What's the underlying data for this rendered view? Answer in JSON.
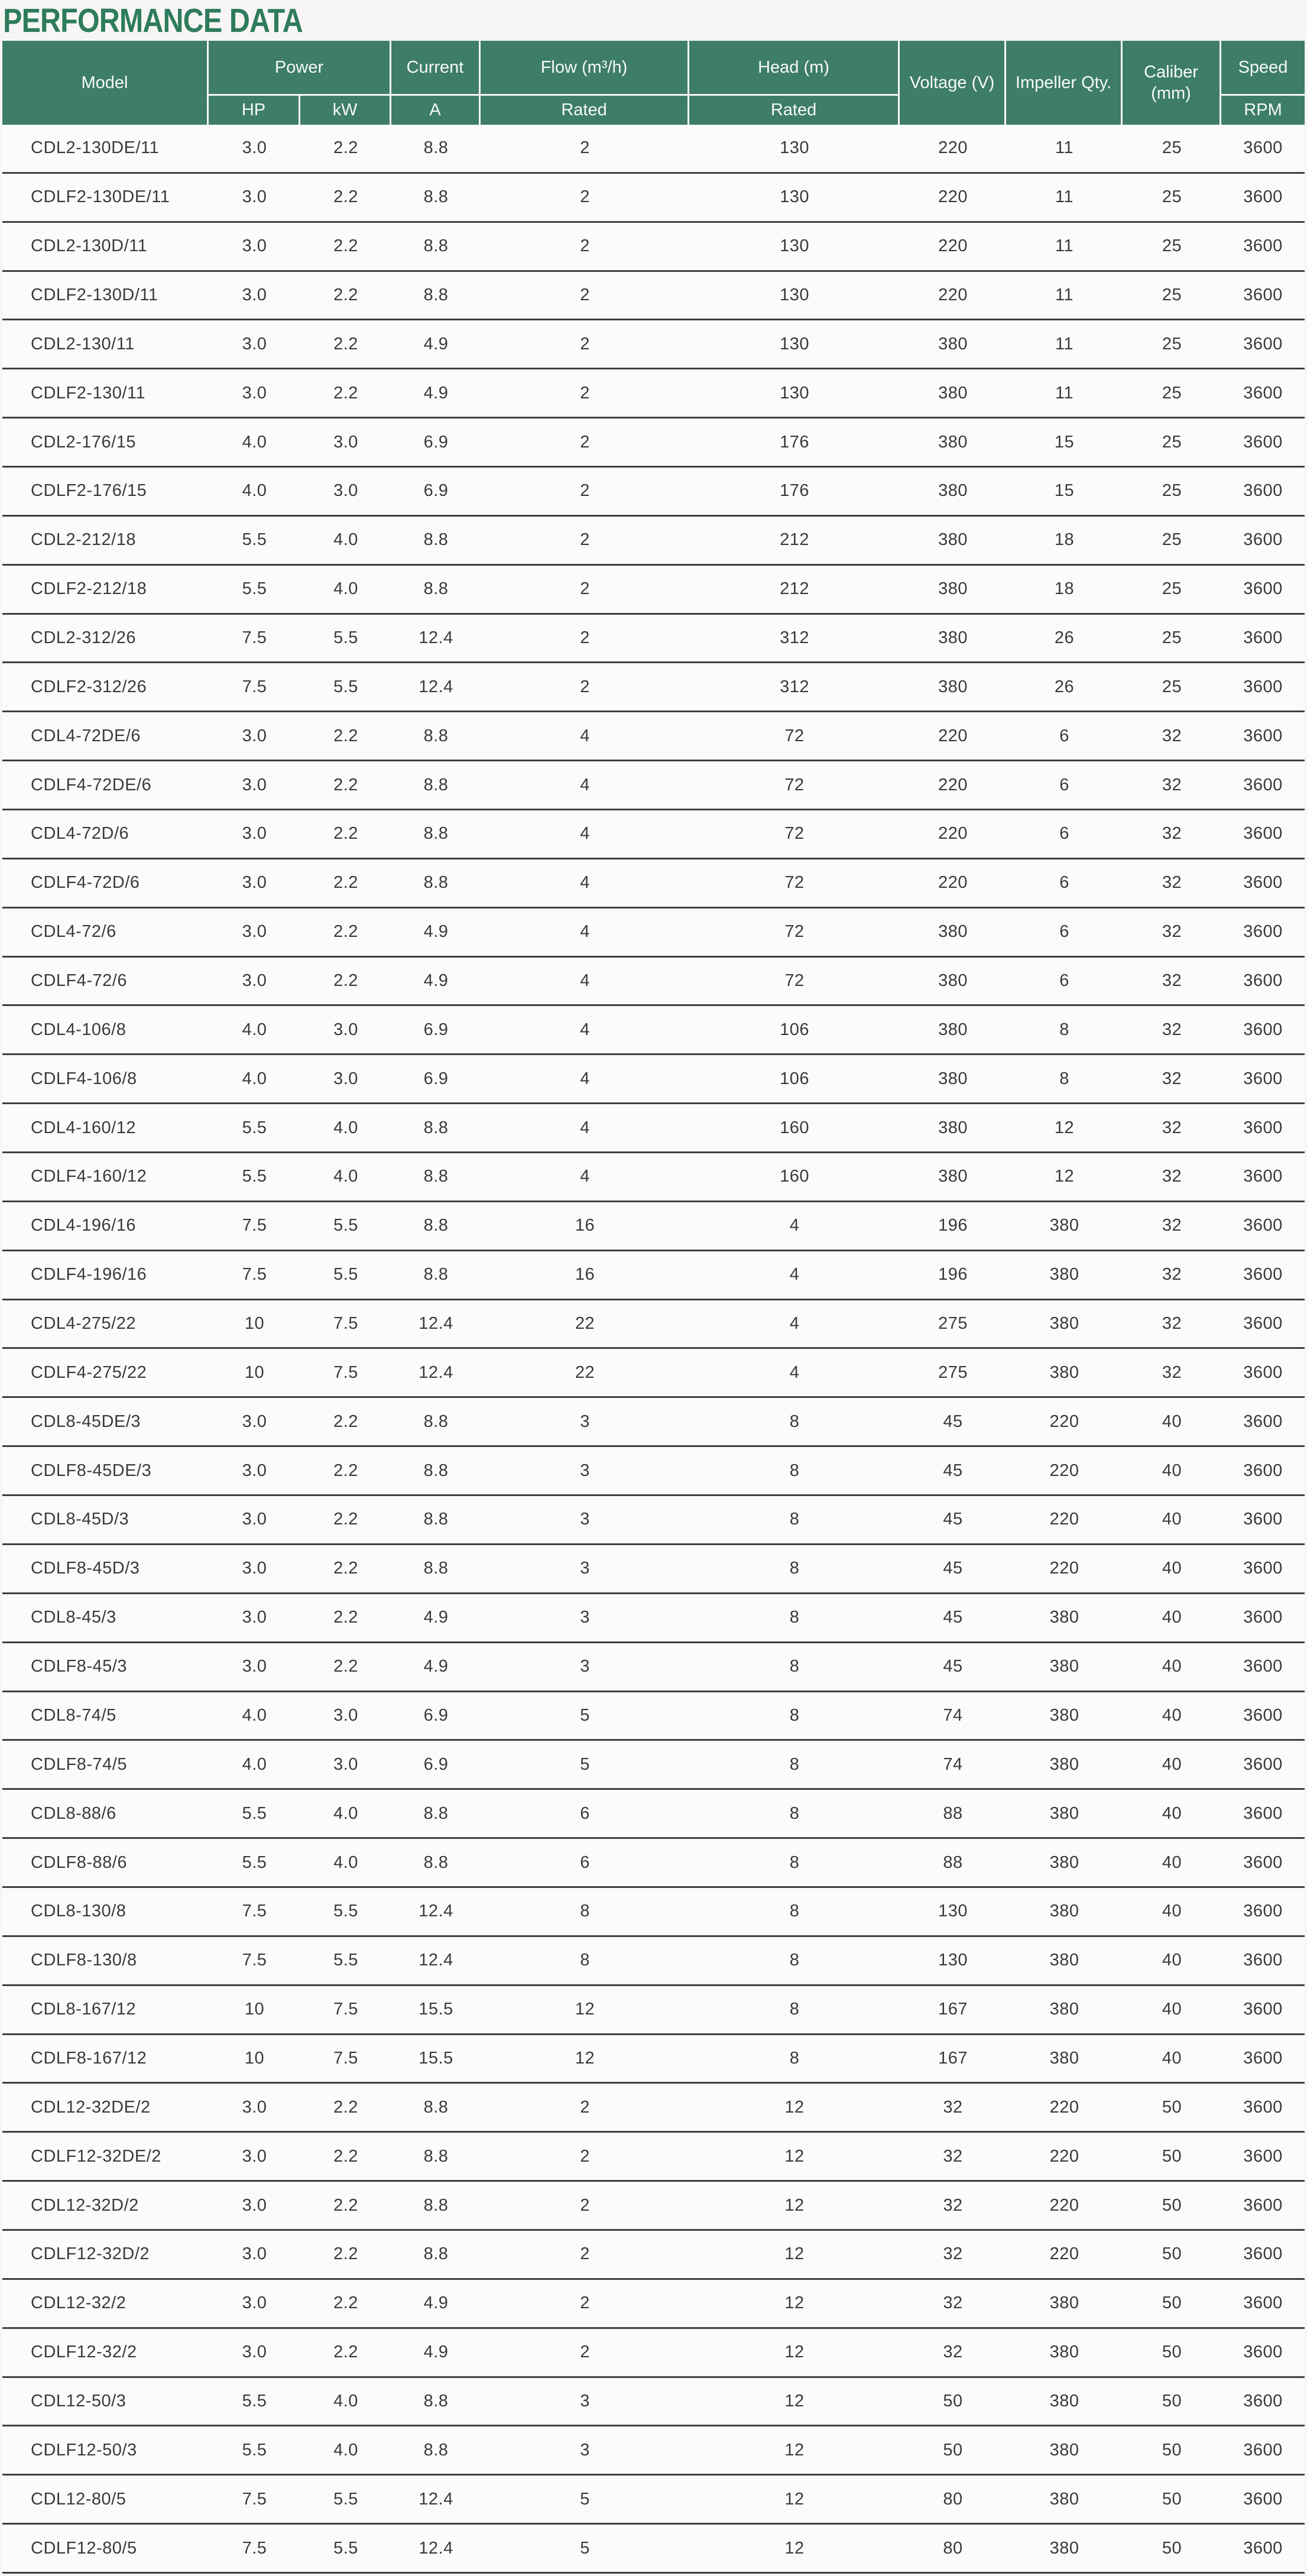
{
  "page": {
    "title": "PERFORMANCE DATA"
  },
  "colors": {
    "title_green": "#2e7b5e",
    "header_green": "#3e7d68",
    "header_text": "#f6faf8",
    "row_background": "#fbfbfa",
    "row_separator": "#3f3f3f",
    "body_text": "#3a3a3a",
    "page_background": "#f7f6f4"
  },
  "table": {
    "header": {
      "model": "Model",
      "power": "Power",
      "hp": "HP",
      "kw": "kW",
      "current": "Current",
      "current_sub": "A",
      "flow": "Flow (m³/h)",
      "flow_sub": "Rated",
      "head": "Head (m)",
      "head_sub": "Rated",
      "voltage": "Voltage (V)",
      "impeller": "Impeller Qty.",
      "caliber": "Caliber (mm)",
      "speed": "Speed",
      "speed_sub": "RPM"
    },
    "columns": [
      "model",
      "hp",
      "kw",
      "a",
      "flow",
      "head",
      "voltage",
      "impeller",
      "caliber",
      "speed"
    ],
    "rows": [
      [
        "CDL2-130DE/11",
        "3.0",
        "2.2",
        "8.8",
        "2",
        "130",
        "220",
        "11",
        "25",
        "3600"
      ],
      [
        "CDLF2-130DE/11",
        "3.0",
        "2.2",
        "8.8",
        "2",
        "130",
        "220",
        "11",
        "25",
        "3600"
      ],
      [
        "CDL2-130D/11",
        "3.0",
        "2.2",
        "8.8",
        "2",
        "130",
        "220",
        "11",
        "25",
        "3600"
      ],
      [
        "CDLF2-130D/11",
        "3.0",
        "2.2",
        "8.8",
        "2",
        "130",
        "220",
        "11",
        "25",
        "3600"
      ],
      [
        "CDL2-130/11",
        "3.0",
        "2.2",
        "4.9",
        "2",
        "130",
        "380",
        "11",
        "25",
        "3600"
      ],
      [
        "CDLF2-130/11",
        "3.0",
        "2.2",
        "4.9",
        "2",
        "130",
        "380",
        "11",
        "25",
        "3600"
      ],
      [
        "CDL2-176/15",
        "4.0",
        "3.0",
        "6.9",
        "2",
        "176",
        "380",
        "15",
        "25",
        "3600"
      ],
      [
        "CDLF2-176/15",
        "4.0",
        "3.0",
        "6.9",
        "2",
        "176",
        "380",
        "15",
        "25",
        "3600"
      ],
      [
        "CDL2-212/18",
        "5.5",
        "4.0",
        "8.8",
        "2",
        "212",
        "380",
        "18",
        "25",
        "3600"
      ],
      [
        "CDLF2-212/18",
        "5.5",
        "4.0",
        "8.8",
        "2",
        "212",
        "380",
        "18",
        "25",
        "3600"
      ],
      [
        "CDL2-312/26",
        "7.5",
        "5.5",
        "12.4",
        "2",
        "312",
        "380",
        "26",
        "25",
        "3600"
      ],
      [
        "CDLF2-312/26",
        "7.5",
        "5.5",
        "12.4",
        "2",
        "312",
        "380",
        "26",
        "25",
        "3600"
      ],
      [
        "CDL4-72DE/6",
        "3.0",
        "2.2",
        "8.8",
        "4",
        "72",
        "220",
        "6",
        "32",
        "3600"
      ],
      [
        "CDLF4-72DE/6",
        "3.0",
        "2.2",
        "8.8",
        "4",
        "72",
        "220",
        "6",
        "32",
        "3600"
      ],
      [
        "CDL4-72D/6",
        "3.0",
        "2.2",
        "8.8",
        "4",
        "72",
        "220",
        "6",
        "32",
        "3600"
      ],
      [
        "CDLF4-72D/6",
        "3.0",
        "2.2",
        "8.8",
        "4",
        "72",
        "220",
        "6",
        "32",
        "3600"
      ],
      [
        "CDL4-72/6",
        "3.0",
        "2.2",
        "4.9",
        "4",
        "72",
        "380",
        "6",
        "32",
        "3600"
      ],
      [
        "CDLF4-72/6",
        "3.0",
        "2.2",
        "4.9",
        "4",
        "72",
        "380",
        "6",
        "32",
        "3600"
      ],
      [
        "CDL4-106/8",
        "4.0",
        "3.0",
        "6.9",
        "4",
        "106",
        "380",
        "8",
        "32",
        "3600"
      ],
      [
        "CDLF4-106/8",
        "4.0",
        "3.0",
        "6.9",
        "4",
        "106",
        "380",
        "8",
        "32",
        "3600"
      ],
      [
        "CDL4-160/12",
        "5.5",
        "4.0",
        "8.8",
        "4",
        "160",
        "380",
        "12",
        "32",
        "3600"
      ],
      [
        "CDLF4-160/12",
        "5.5",
        "4.0",
        "8.8",
        "4",
        "160",
        "380",
        "12",
        "32",
        "3600"
      ],
      [
        "CDL4-196/16",
        "7.5",
        "5.5",
        "8.8",
        "16",
        "4",
        "196",
        "380",
        "32",
        "3600"
      ],
      [
        "CDLF4-196/16",
        "7.5",
        "5.5",
        "8.8",
        "16",
        "4",
        "196",
        "380",
        "32",
        "3600"
      ],
      [
        "CDL4-275/22",
        "10",
        "7.5",
        "12.4",
        "22",
        "4",
        "275",
        "380",
        "32",
        "3600"
      ],
      [
        "CDLF4-275/22",
        "10",
        "7.5",
        "12.4",
        "22",
        "4",
        "275",
        "380",
        "32",
        "3600"
      ],
      [
        "CDL8-45DE/3",
        "3.0",
        "2.2",
        "8.8",
        "3",
        "8",
        "45",
        "220",
        "40",
        "3600"
      ],
      [
        "CDLF8-45DE/3",
        "3.0",
        "2.2",
        "8.8",
        "3",
        "8",
        "45",
        "220",
        "40",
        "3600"
      ],
      [
        "CDL8-45D/3",
        "3.0",
        "2.2",
        "8.8",
        "3",
        "8",
        "45",
        "220",
        "40",
        "3600"
      ],
      [
        "CDLF8-45D/3",
        "3.0",
        "2.2",
        "8.8",
        "3",
        "8",
        "45",
        "220",
        "40",
        "3600"
      ],
      [
        "CDL8-45/3",
        "3.0",
        "2.2",
        "4.9",
        "3",
        "8",
        "45",
        "380",
        "40",
        "3600"
      ],
      [
        "CDLF8-45/3",
        "3.0",
        "2.2",
        "4.9",
        "3",
        "8",
        "45",
        "380",
        "40",
        "3600"
      ],
      [
        "CDL8-74/5",
        "4.0",
        "3.0",
        "6.9",
        "5",
        "8",
        "74",
        "380",
        "40",
        "3600"
      ],
      [
        "CDLF8-74/5",
        "4.0",
        "3.0",
        "6.9",
        "5",
        "8",
        "74",
        "380",
        "40",
        "3600"
      ],
      [
        "CDL8-88/6",
        "5.5",
        "4.0",
        "8.8",
        "6",
        "8",
        "88",
        "380",
        "40",
        "3600"
      ],
      [
        "CDLF8-88/6",
        "5.5",
        "4.0",
        "8.8",
        "6",
        "8",
        "88",
        "380",
        "40",
        "3600"
      ],
      [
        "CDL8-130/8",
        "7.5",
        "5.5",
        "12.4",
        "8",
        "8",
        "130",
        "380",
        "40",
        "3600"
      ],
      [
        "CDLF8-130/8",
        "7.5",
        "5.5",
        "12.4",
        "8",
        "8",
        "130",
        "380",
        "40",
        "3600"
      ],
      [
        "CDL8-167/12",
        "10",
        "7.5",
        "15.5",
        "12",
        "8",
        "167",
        "380",
        "40",
        "3600"
      ],
      [
        "CDLF8-167/12",
        "10",
        "7.5",
        "15.5",
        "12",
        "8",
        "167",
        "380",
        "40",
        "3600"
      ],
      [
        "CDL12-32DE/2",
        "3.0",
        "2.2",
        "8.8",
        "2",
        "12",
        "32",
        "220",
        "50",
        "3600"
      ],
      [
        "CDLF12-32DE/2",
        "3.0",
        "2.2",
        "8.8",
        "2",
        "12",
        "32",
        "220",
        "50",
        "3600"
      ],
      [
        "CDL12-32D/2",
        "3.0",
        "2.2",
        "8.8",
        "2",
        "12",
        "32",
        "220",
        "50",
        "3600"
      ],
      [
        "CDLF12-32D/2",
        "3.0",
        "2.2",
        "8.8",
        "2",
        "12",
        "32",
        "220",
        "50",
        "3600"
      ],
      [
        "CDL12-32/2",
        "3.0",
        "2.2",
        "4.9",
        "2",
        "12",
        "32",
        "380",
        "50",
        "3600"
      ],
      [
        "CDLF12-32/2",
        "3.0",
        "2.2",
        "4.9",
        "2",
        "12",
        "32",
        "380",
        "50",
        "3600"
      ],
      [
        "CDL12-50/3",
        "5.5",
        "4.0",
        "8.8",
        "3",
        "12",
        "50",
        "380",
        "50",
        "3600"
      ],
      [
        "CDLF12-50/3",
        "5.5",
        "4.0",
        "8.8",
        "3",
        "12",
        "50",
        "380",
        "50",
        "3600"
      ],
      [
        "CDL12-80/5",
        "7.5",
        "5.5",
        "12.4",
        "5",
        "12",
        "80",
        "380",
        "50",
        "3600"
      ],
      [
        "CDLF12-80/5",
        "7.5",
        "5.5",
        "12.4",
        "5",
        "12",
        "80",
        "380",
        "50",
        "3600"
      ]
    ]
  }
}
